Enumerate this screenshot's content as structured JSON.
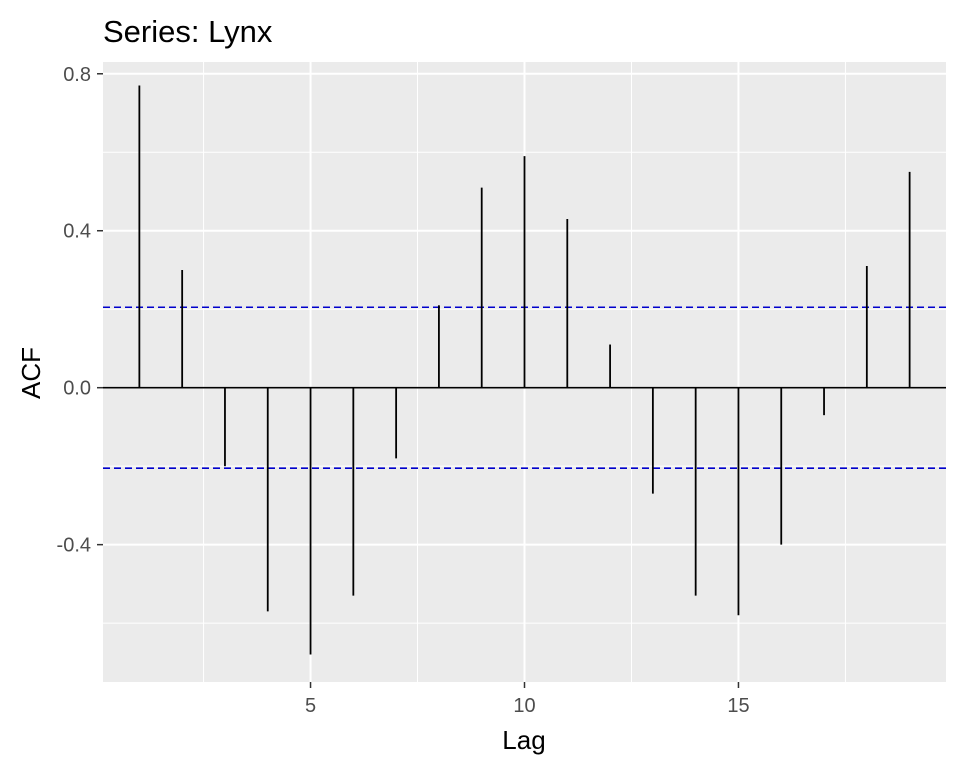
{
  "chart_data": {
    "type": "bar",
    "title": "Series: Lynx",
    "xlabel": "Lag",
    "ylabel": "ACF",
    "x": [
      1,
      2,
      3,
      4,
      5,
      6,
      7,
      8,
      9,
      10,
      11,
      12,
      13,
      14,
      15,
      16,
      17,
      18,
      19
    ],
    "values": [
      0.77,
      0.3,
      -0.2,
      -0.57,
      -0.68,
      -0.53,
      -0.18,
      0.21,
      0.51,
      0.59,
      0.43,
      0.11,
      -0.27,
      -0.53,
      -0.58,
      -0.4,
      -0.07,
      0.31,
      0.55
    ],
    "confidence_limit": 0.205,
    "xlim": [
      0.15,
      19.85
    ],
    "ylim": [
      -0.75,
      0.83
    ],
    "x_ticks": [
      5,
      10,
      15
    ],
    "x_tick_labels": [
      "5",
      "10",
      "15"
    ],
    "y_ticks": [
      -0.4,
      0.0,
      0.4,
      0.8
    ],
    "y_tick_labels": [
      "-0.4",
      "0.0",
      "0.4",
      "0.8"
    ],
    "grid": true,
    "colors": {
      "panel_background": "#ebebeb",
      "grid": "#ffffff",
      "bar": "#000000",
      "confidence_line": "#0000cc",
      "tick_text": "#4d4d4d"
    }
  }
}
